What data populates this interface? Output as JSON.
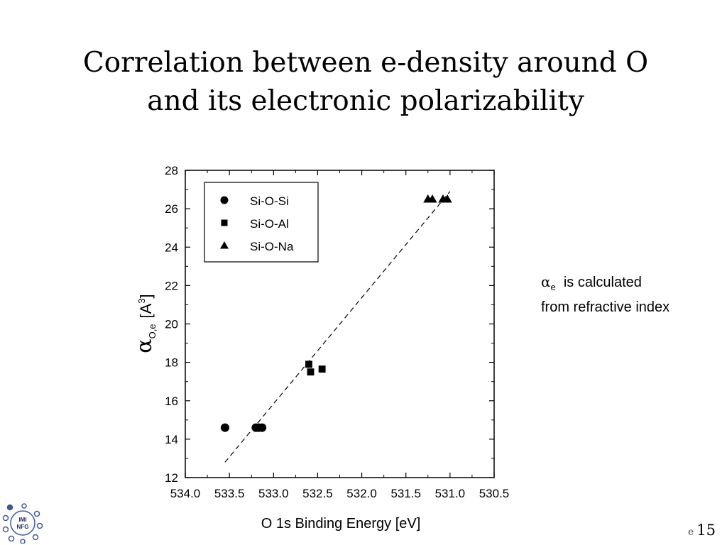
{
  "slide": {
    "title_line1": "Correlation between e-density around O",
    "title_line2": "and its electronic polarizability",
    "note_alpha": "α",
    "note_sub": "e",
    "note_line1_rest": "  is calculated",
    "note_line2": "from refractive index",
    "logo_text_top": "IMI",
    "logo_text_bottom": "NFG",
    "page_fragment": "e",
    "page_number": "15"
  },
  "chart_data": {
    "type": "scatter",
    "title": "",
    "xlabel": "O 1s Binding Energy  [eV]",
    "ylabel_symbol": "α",
    "ylabel_sub": "O,e",
    "ylabel_unit": "[A",
    "ylabel_sup": "3",
    "ylabel_close": "]",
    "xlim": [
      534.0,
      530.5
    ],
    "x_reversed": true,
    "ylim": [
      12,
      28
    ],
    "xticks": [
      "534.0",
      "533.5",
      "533.0",
      "532.5",
      "532.0",
      "531.5",
      "531.0",
      "530.5"
    ],
    "yticks": [
      "12",
      "14",
      "16",
      "18",
      "20",
      "22",
      "24",
      "26",
      "28"
    ],
    "grid": false,
    "legend_position": "top-left",
    "series": [
      {
        "name": "Si-O-Si",
        "marker": "circle",
        "points": [
          [
            533.55,
            14.6
          ],
          [
            533.2,
            14.6
          ],
          [
            533.17,
            14.6
          ],
          [
            533.13,
            14.6
          ]
        ]
      },
      {
        "name": "Si-O-Al",
        "marker": "square",
        "points": [
          [
            532.6,
            17.9
          ],
          [
            532.58,
            17.5
          ],
          [
            532.45,
            17.65
          ]
        ]
      },
      {
        "name": "Si-O-Na",
        "marker": "triangle",
        "points": [
          [
            531.25,
            26.5
          ],
          [
            531.2,
            26.5
          ],
          [
            531.08,
            26.5
          ],
          [
            531.03,
            26.5
          ]
        ]
      }
    ],
    "fit_line": {
      "style": "dashed",
      "from": [
        533.55,
        12.8
      ],
      "to": [
        531.0,
        26.9
      ]
    }
  }
}
